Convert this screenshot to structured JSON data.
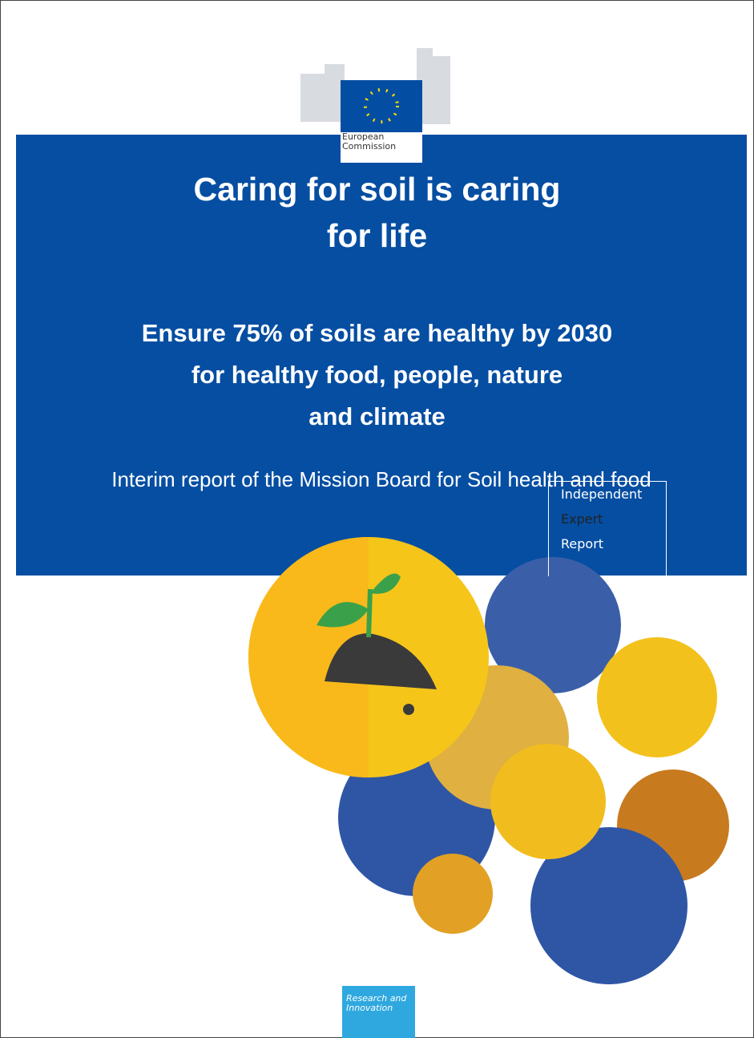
{
  "logo": {
    "lines": [
      "European",
      "Commission"
    ]
  },
  "title": {
    "lines": [
      "Caring for soil is caring",
      "for life"
    ]
  },
  "subtitle": {
    "lines": [
      "Ensure 75% of soils are healthy by 2030",
      "for healthy food, people, nature",
      "and climate"
    ]
  },
  "report_line": "Interim report of the Mission Board for Soil health and food",
  "badge": {
    "lines": [
      "Independent",
      "Expert",
      "Report"
    ]
  },
  "footer": {
    "lines": [
      "Research and",
      "Innovation"
    ]
  }
}
